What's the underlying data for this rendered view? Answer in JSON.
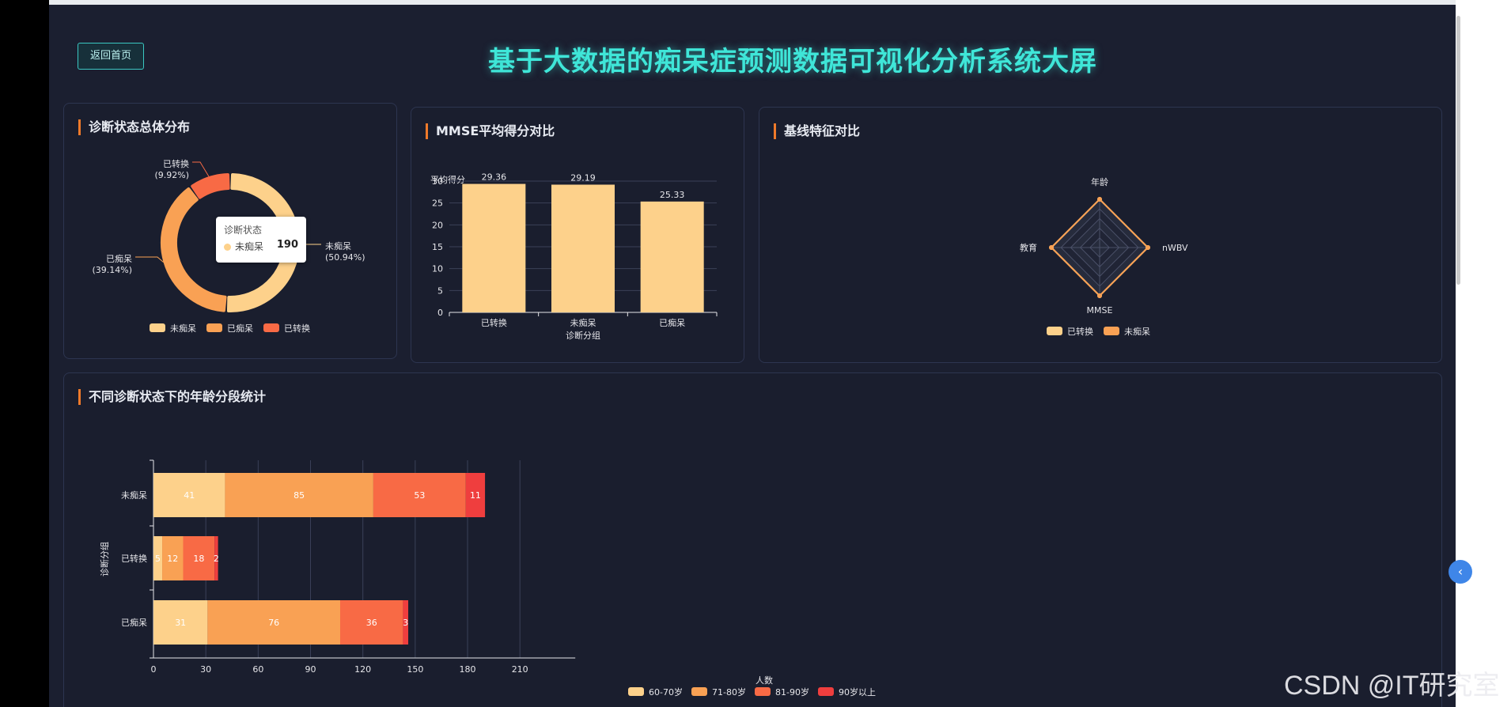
{
  "header": {
    "back_label": "返回首页",
    "title": "基于大数据的痴呆症预测数据可视化分析系统大屏"
  },
  "panels": {
    "pie_title": "诊断状态总体分布",
    "bar_title": "MMSE平均得分对比",
    "radar_title": "基线特征对比",
    "stack_title": "不同诊断状态下的年龄分段统计"
  },
  "tooltip": {
    "title": "诊断状态",
    "name": "未痴呆",
    "value": "190"
  },
  "watermark": "CSDN @IT研究室",
  "chart_data": [
    {
      "type": "pie",
      "title": "诊断状态总体分布",
      "variant": "donut",
      "categories": [
        "未痴呆",
        "已痴呆",
        "已转换"
      ],
      "values": [
        190,
        146,
        37
      ],
      "percent_labels": [
        "(50.94%)",
        "(39.14%)",
        "(9.92%)"
      ],
      "colors": [
        "#fdd18b",
        "#f9a154",
        "#f86a45"
      ],
      "legend": "bottom"
    },
    {
      "type": "bar",
      "title": "MMSE平均得分对比",
      "categories": [
        "已转换",
        "未痴呆",
        "已痴呆"
      ],
      "values": [
        29.36,
        29.19,
        25.33
      ],
      "value_labels": [
        "29.36",
        "29.19",
        "25.33"
      ],
      "xlabel": "诊断分组",
      "ylabel": "平均得分",
      "ylim": [
        0,
        30
      ],
      "yticks": [
        "0",
        "5",
        "10",
        "15",
        "20",
        "25",
        "30"
      ],
      "color": "#fdd18b",
      "grid": true
    },
    {
      "type": "radar",
      "title": "基线特征对比",
      "indicators": [
        "年龄",
        "nWBV",
        "MMSE",
        "教育"
      ],
      "series": [
        {
          "name": "已转换",
          "values": [
            1,
            1,
            1,
            1
          ],
          "color": "#fdd18b"
        },
        {
          "name": "未痴呆",
          "values": [
            1,
            1,
            1,
            1
          ],
          "color": "#f9a154"
        }
      ],
      "legend": "bottom"
    },
    {
      "type": "bar",
      "orientation": "horizontal",
      "stacked": true,
      "title": "不同诊断状态下的年龄分段统计",
      "categories": [
        "未痴呆",
        "已转换",
        "已痴呆"
      ],
      "series": [
        {
          "name": "60-70岁",
          "values": [
            41,
            5,
            31
          ],
          "color": "#fdd18b"
        },
        {
          "name": "71-80岁",
          "values": [
            85,
            12,
            76
          ],
          "color": "#f9a154"
        },
        {
          "name": "81-90岁",
          "values": [
            53,
            18,
            36
          ],
          "color": "#f86a45"
        },
        {
          "name": "90岁以上",
          "values": [
            11,
            2,
            3
          ],
          "color": "#ef3e3e"
        }
      ],
      "xlabel": "人数",
      "ylabel": "诊断分组",
      "xlim": [
        0,
        210
      ],
      "xticks": [
        "0",
        "30",
        "60",
        "90",
        "120",
        "150",
        "180",
        "210"
      ],
      "legend": "bottom",
      "grid": true
    }
  ]
}
